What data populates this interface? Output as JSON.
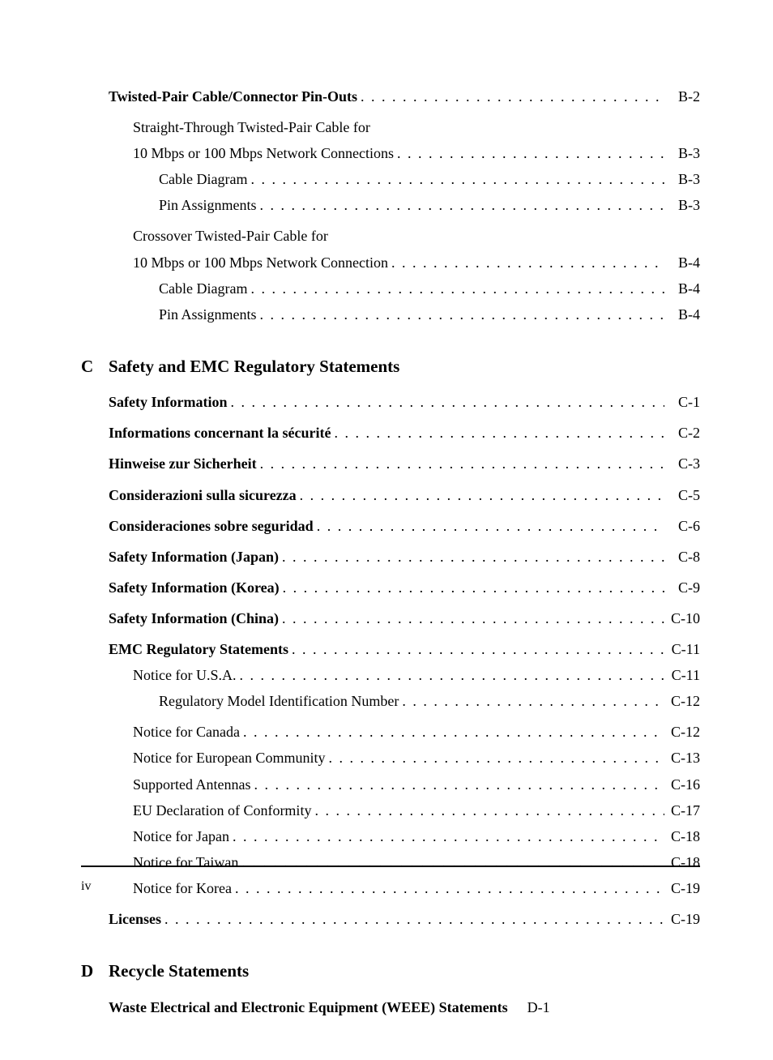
{
  "colors": {
    "text": "#000000",
    "background": "#ffffff",
    "rule": "#000000"
  },
  "typography": {
    "family": "Century Schoolbook / serif",
    "body_size_pt": 13,
    "heading_size_pt": 16,
    "bold_weight": 700
  },
  "dot_leader": ". . . . . . . . . . . . . . . . . . . . . . . . . . . . . . . . . . . . . . . . . . . . . . . . . . . . . . . . . . . . . . . . . . . . . . . . . . . . . . . . . . . . . . . . . . . . . . . . . . . . . .",
  "page_number": "iv",
  "pre_section_entries": [
    {
      "level": 0,
      "bold": true,
      "label": "Twisted-Pair Cable/Connector Pin-Outs",
      "page": "B-2"
    },
    {
      "level": 1,
      "bold": false,
      "label_pre": "Straight-Through Twisted-Pair Cable for",
      "label": "10 Mbps or 100 Mbps Network Connections",
      "page": "B-3"
    },
    {
      "level": 2,
      "bold": false,
      "label": "Cable Diagram",
      "page": "B-3"
    },
    {
      "level": 2,
      "bold": false,
      "label": "Pin Assignments",
      "page": "B-3"
    },
    {
      "level": 1,
      "bold": false,
      "label_pre": "Crossover Twisted-Pair Cable for",
      "label": "10 Mbps or 100 Mbps Network Connection",
      "page": "B-4"
    },
    {
      "level": 2,
      "bold": false,
      "label": "Cable Diagram",
      "page": "B-4"
    },
    {
      "level": 2,
      "bold": false,
      "label": "Pin Assignments",
      "page": "B-4"
    }
  ],
  "sections": [
    {
      "letter": "C",
      "title": "Safety and EMC Regulatory Statements",
      "entries": [
        {
          "level": 0,
          "bold": true,
          "label": "Safety Information",
          "page": "C-1"
        },
        {
          "level": 0,
          "bold": true,
          "label": "Informations concernant la sécurité",
          "page": "C-2"
        },
        {
          "level": 0,
          "bold": true,
          "label": "Hinweise zur Sicherheit",
          "page": "C-3"
        },
        {
          "level": 0,
          "bold": true,
          "label": "Considerazioni sulla sicurezza",
          "page": "C-5"
        },
        {
          "level": 0,
          "bold": true,
          "label": "Consideraciones sobre seguridad",
          "page": "C-6"
        },
        {
          "level": 0,
          "bold": true,
          "label": "Safety Information (Japan)",
          "page": "C-8"
        },
        {
          "level": 0,
          "bold": true,
          "label": "Safety Information (Korea)",
          "page": "C-9"
        },
        {
          "level": 0,
          "bold": true,
          "label": "Safety Information (China)",
          "page": "C-10"
        },
        {
          "level": 0,
          "bold": true,
          "label": "EMC Regulatory Statements",
          "page": "C-11"
        },
        {
          "level": 1,
          "bold": false,
          "label": "Notice for U.S.A.",
          "page": "C-11"
        },
        {
          "level": 2,
          "bold": false,
          "label": "Regulatory Model Identification Number",
          "page": "C-12"
        },
        {
          "level": 1,
          "bold": false,
          "label": "Notice for Canada",
          "page": "C-12"
        },
        {
          "level": 1,
          "bold": false,
          "label": "Notice for European Community",
          "page": "C-13"
        },
        {
          "level": 1,
          "bold": false,
          "label": "Supported Antennas",
          "page": "C-16"
        },
        {
          "level": 1,
          "bold": false,
          "label": "EU Declaration of Conformity",
          "page": "C-17"
        },
        {
          "level": 1,
          "bold": false,
          "label": "Notice for Japan",
          "page": "C-18"
        },
        {
          "level": 1,
          "bold": false,
          "label": "Notice for Taiwan",
          "page": "C-18"
        },
        {
          "level": 1,
          "bold": false,
          "label": "Notice for Korea",
          "page": "C-19"
        },
        {
          "level": 0,
          "bold": true,
          "label": "Licenses",
          "page": "C-19"
        }
      ]
    },
    {
      "letter": "D",
      "title": "Recycle Statements",
      "entries": [
        {
          "level": 0,
          "bold": true,
          "label": "Waste Electrical and Electronic Equipment (WEEE) Statements",
          "page": "D-1",
          "no_leader": true
        }
      ]
    }
  ]
}
